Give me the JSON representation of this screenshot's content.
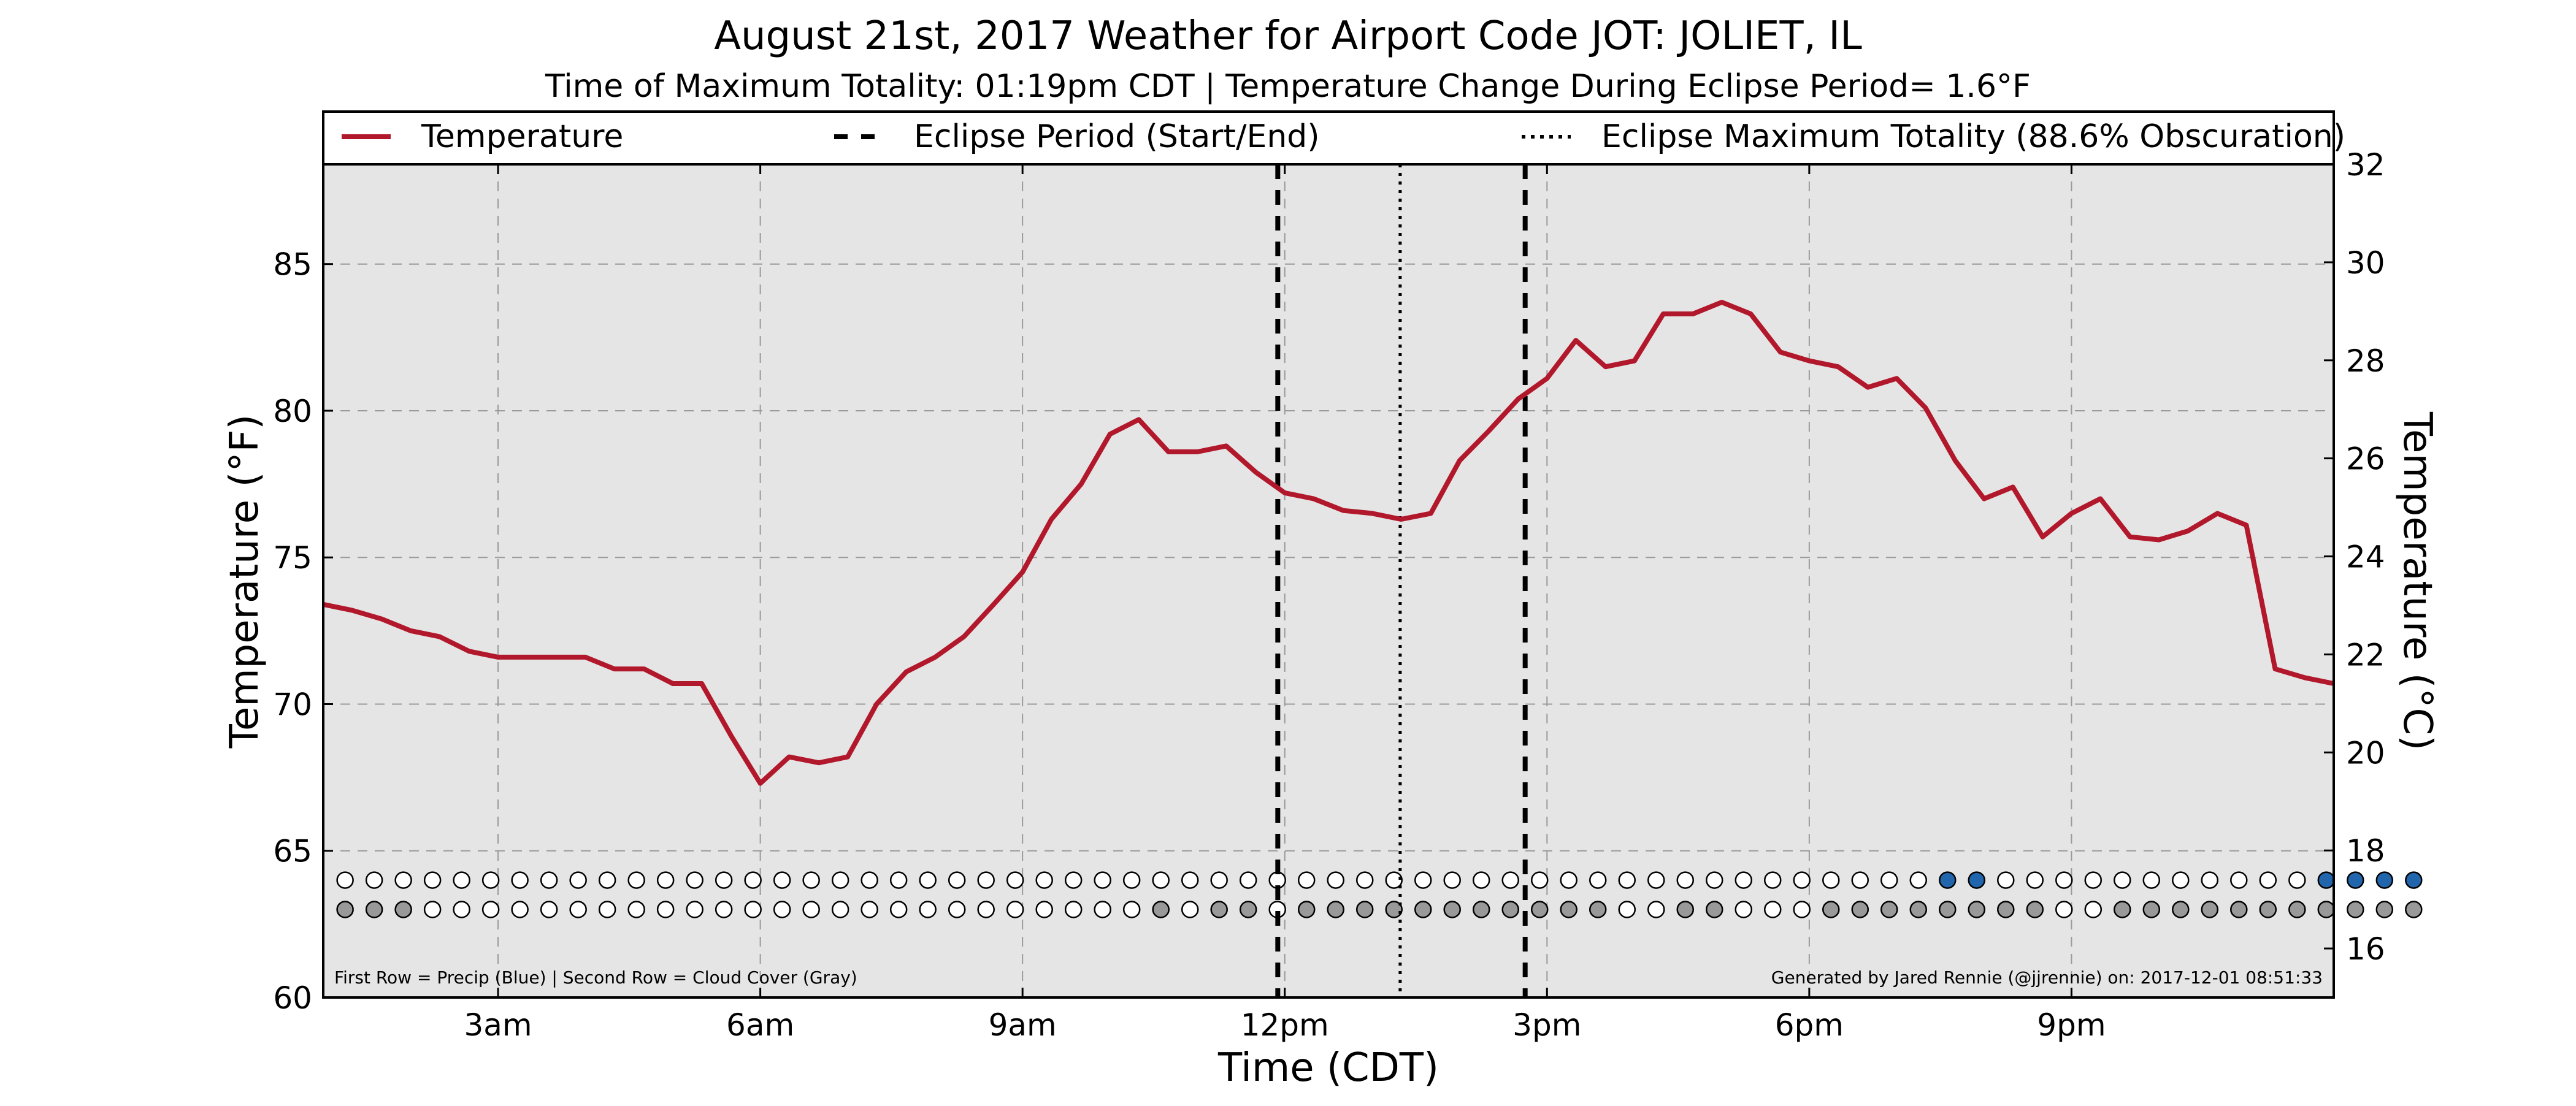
{
  "chart_data": {
    "type": "line",
    "title": "August 21st, 2017 Weather for Airport Code JOT: JOLIET, IL",
    "subtitle": "Time of Maximum Totality: 01:19pm CDT | Temperature Change During Eclipse Period= 1.6°F",
    "xlabel": "Time (CDT)",
    "ylabel_left": "Temperature (°F)",
    "ylabel_right": "Temperature (°C)",
    "xlim": [
      1.0,
      24.0
    ],
    "ylim": [
      60,
      88.4
    ],
    "ylim_celsius": [
      15.0,
      32.0
    ],
    "x_ticks": [
      {
        "x": 3,
        "label": "3am"
      },
      {
        "x": 6,
        "label": "6am"
      },
      {
        "x": 9,
        "label": "9am"
      },
      {
        "x": 12,
        "label": "12pm"
      },
      {
        "x": 15,
        "label": "3pm"
      },
      {
        "x": 18,
        "label": "6pm"
      },
      {
        "x": 21,
        "label": "9pm"
      }
    ],
    "y_ticks_left": [
      60,
      65,
      70,
      75,
      80,
      85
    ],
    "y_ticks_right": [
      16,
      18,
      20,
      22,
      24,
      26,
      28,
      30,
      32
    ],
    "grid": true,
    "legend": [
      {
        "label": "Temperature",
        "style": "solid",
        "color": "#b2182b"
      },
      {
        "label": "Eclipse Period (Start/End)",
        "style": "dashed",
        "color": "#000000"
      },
      {
        "label": "Eclipse Maximum Totality (88.6% Obscuration)",
        "style": "dotted",
        "color": "#000000"
      }
    ],
    "legend_placement": "top (full width)",
    "series": [
      {
        "name": "Temperature",
        "color": "#b2182b",
        "points": [
          [
            1.0,
            73.4
          ],
          [
            1.33,
            73.2
          ],
          [
            1.67,
            72.9
          ],
          [
            2.0,
            72.5
          ],
          [
            2.33,
            72.3
          ],
          [
            2.67,
            71.8
          ],
          [
            3.0,
            71.6
          ],
          [
            3.33,
            71.6
          ],
          [
            3.67,
            71.6
          ],
          [
            4.0,
            71.6
          ],
          [
            4.33,
            71.2
          ],
          [
            4.67,
            71.2
          ],
          [
            5.0,
            70.7
          ],
          [
            5.33,
            70.7
          ],
          [
            5.67,
            68.9
          ],
          [
            6.0,
            67.3
          ],
          [
            6.33,
            68.2
          ],
          [
            6.67,
            68.0
          ],
          [
            7.0,
            68.2
          ],
          [
            7.33,
            70.0
          ],
          [
            7.67,
            71.1
          ],
          [
            8.0,
            71.6
          ],
          [
            8.33,
            72.3
          ],
          [
            8.67,
            73.4
          ],
          [
            9.0,
            74.5
          ],
          [
            9.33,
            76.3
          ],
          [
            9.67,
            77.5
          ],
          [
            10.0,
            79.2
          ],
          [
            10.33,
            79.7
          ],
          [
            10.67,
            78.6
          ],
          [
            11.0,
            78.6
          ],
          [
            11.33,
            78.8
          ],
          [
            11.67,
            77.9
          ],
          [
            12.0,
            77.2
          ],
          [
            12.33,
            77.0
          ],
          [
            12.67,
            76.6
          ],
          [
            13.0,
            76.5
          ],
          [
            13.33,
            76.3
          ],
          [
            13.67,
            76.5
          ],
          [
            14.0,
            78.3
          ],
          [
            14.33,
            79.3
          ],
          [
            14.67,
            80.4
          ],
          [
            15.0,
            81.1
          ],
          [
            15.33,
            82.4
          ],
          [
            15.67,
            81.5
          ],
          [
            16.0,
            81.7
          ],
          [
            16.33,
            83.3
          ],
          [
            16.67,
            83.3
          ],
          [
            17.0,
            83.7
          ],
          [
            17.33,
            83.3
          ],
          [
            17.67,
            82.0
          ],
          [
            18.0,
            81.7
          ],
          [
            18.33,
            81.5
          ],
          [
            18.67,
            80.8
          ],
          [
            19.0,
            81.1
          ],
          [
            19.33,
            80.1
          ],
          [
            19.67,
            78.3
          ],
          [
            20.0,
            77.0
          ],
          [
            20.33,
            77.4
          ],
          [
            20.67,
            75.7
          ],
          [
            21.0,
            76.5
          ],
          [
            21.33,
            77.0
          ],
          [
            21.67,
            75.7
          ],
          [
            22.0,
            75.6
          ],
          [
            22.33,
            75.9
          ],
          [
            22.67,
            76.5
          ],
          [
            23.0,
            76.1
          ],
          [
            23.33,
            71.2
          ],
          [
            23.67,
            70.9
          ],
          [
            24.0,
            70.7
          ]
        ]
      }
    ],
    "eclipse_start": 11.92,
    "eclipse_end": 14.75,
    "max_totality": 13.32,
    "dot_rows": {
      "start_x": 1.25,
      "step": 0.3333,
      "precip_y": 64.0,
      "cloud_y": 63.0,
      "colors": {
        "empty": "#ffffff",
        "precip": "#2166ac",
        "cloud": "#999999"
      },
      "precip": [
        0,
        0,
        0,
        0,
        0,
        0,
        0,
        0,
        0,
        0,
        0,
        0,
        0,
        0,
        0,
        0,
        0,
        0,
        0,
        0,
        0,
        0,
        0,
        0,
        0,
        0,
        0,
        0,
        0,
        0,
        0,
        0,
        0,
        0,
        0,
        0,
        0,
        0,
        0,
        0,
        0,
        0,
        0,
        0,
        0,
        0,
        0,
        0,
        0,
        0,
        0,
        0,
        0,
        0,
        0,
        1,
        1,
        0,
        0,
        0,
        0,
        0,
        0,
        0,
        0,
        0,
        0,
        0,
        1,
        1,
        1,
        1
      ],
      "cloud": [
        1,
        1,
        1,
        0,
        0,
        0,
        0,
        0,
        0,
        0,
        0,
        0,
        0,
        0,
        0,
        0,
        0,
        0,
        0,
        0,
        0,
        0,
        0,
        0,
        0,
        0,
        0,
        0,
        1,
        0,
        1,
        1,
        0,
        1,
        1,
        1,
        1,
        1,
        1,
        1,
        1,
        1,
        1,
        1,
        0,
        0,
        1,
        1,
        0,
        0,
        0,
        1,
        1,
        1,
        1,
        1,
        1,
        1,
        1,
        0,
        0,
        1,
        1,
        1,
        1,
        1,
        1,
        1,
        1,
        1,
        1,
        1
      ]
    },
    "footnote_left": "First Row = Precip (Blue) | Second Row = Cloud Cover (Gray)",
    "footnote_right": "Generated by Jared Rennie (@jjrennie) on: 2017-12-01 08:51:33"
  }
}
